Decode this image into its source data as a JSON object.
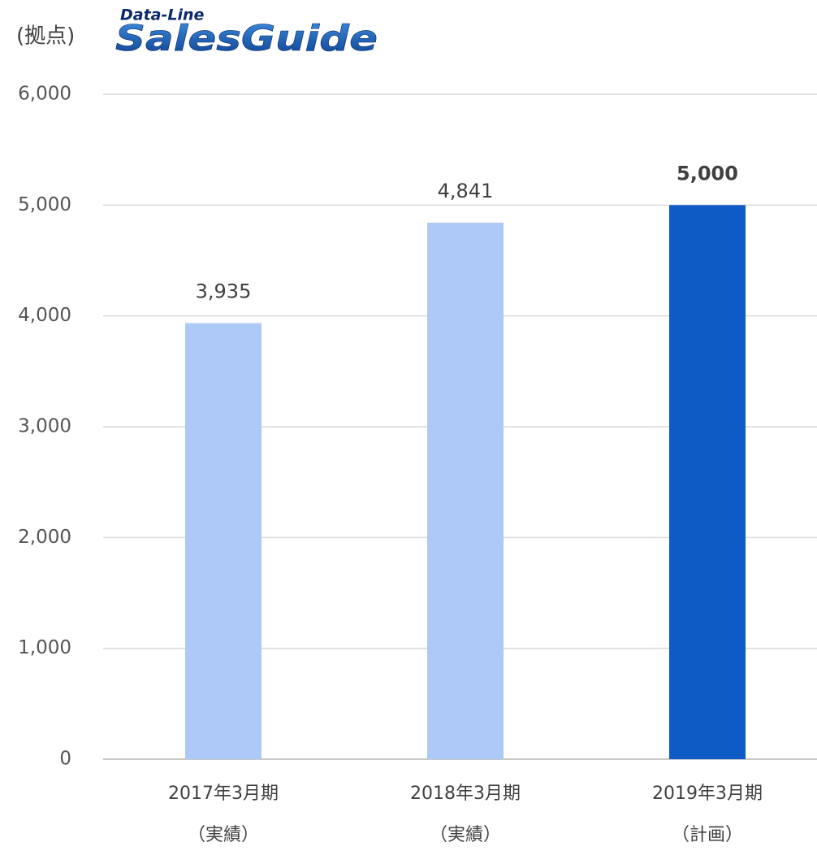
{
  "chart_data": {
    "type": "bar",
    "unit_label": "(拠点)",
    "logo": {
      "top": "Data-Line",
      "main": "SalesGuide"
    },
    "categories": [
      "2017年3月期",
      "2018年3月期",
      "2019年3月期"
    ],
    "category_notes": [
      "（実績）",
      "（実績）",
      "（計画）"
    ],
    "values": [
      3935,
      4841,
      5000
    ],
    "value_labels": [
      "3,935",
      "4,841",
      "5,000"
    ],
    "bold_labels": [
      false,
      false,
      true
    ],
    "colors": [
      "#adc9f7",
      "#adc9f7",
      "#0f5bc6"
    ],
    "ylim": [
      0,
      6000
    ],
    "yticks": [
      0,
      {
        "value": 1000,
        "label": "1,000"
      },
      {
        "value": 2000,
        "label": "2,000"
      },
      {
        "value": 3000,
        "label": "3,000"
      },
      {
        "value": 4000,
        "label": "4,000"
      },
      {
        "value": 5000,
        "label": "5,000"
      },
      {
        "value": 6000,
        "label": "6,000"
      }
    ],
    "grid": true
  }
}
